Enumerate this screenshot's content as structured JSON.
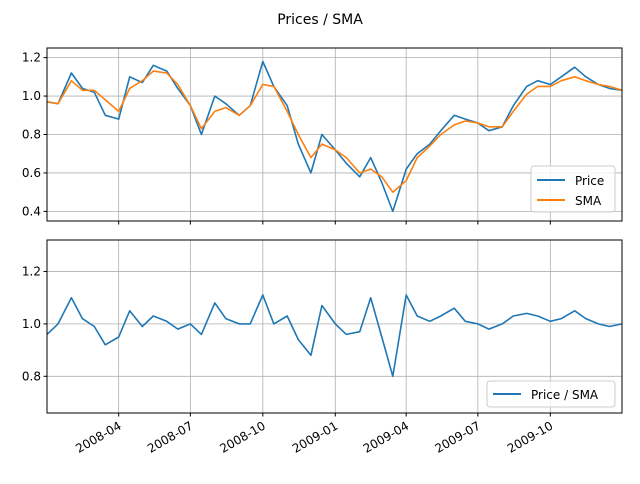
{
  "figure": {
    "title": "Prices / SMA"
  },
  "chart_data": [
    {
      "type": "line",
      "grid": true,
      "legend_location": "lower-right",
      "xlim": [
        "2008-01-01",
        "2009-12-31"
      ],
      "ylim": [
        0.35,
        1.25
      ],
      "yticks": [
        "0.4",
        "0.6",
        "0.8",
        "1.0",
        "1.2"
      ],
      "x": [
        "2008-01-01",
        "2008-01-15",
        "2008-02-01",
        "2008-02-15",
        "2008-03-01",
        "2008-03-15",
        "2008-04-01",
        "2008-04-15",
        "2008-05-01",
        "2008-05-15",
        "2008-06-01",
        "2008-06-15",
        "2008-07-01",
        "2008-07-15",
        "2008-08-01",
        "2008-08-15",
        "2008-09-01",
        "2008-09-15",
        "2008-10-01",
        "2008-10-15",
        "2008-11-01",
        "2008-11-15",
        "2008-12-01",
        "2008-12-15",
        "2009-01-01",
        "2009-01-15",
        "2009-02-01",
        "2009-02-15",
        "2009-03-01",
        "2009-03-15",
        "2009-04-01",
        "2009-04-15",
        "2009-05-01",
        "2009-05-15",
        "2009-06-01",
        "2009-06-15",
        "2009-07-01",
        "2009-07-15",
        "2009-08-01",
        "2009-08-15",
        "2009-09-01",
        "2009-09-15",
        "2009-10-01",
        "2009-10-15",
        "2009-11-01",
        "2009-11-15",
        "2009-12-01",
        "2009-12-15",
        "2009-12-31"
      ],
      "series": [
        {
          "name": "Price",
          "color": "#1f77b4",
          "values": [
            0.97,
            0.96,
            1.12,
            1.04,
            1.02,
            0.9,
            0.88,
            1.1,
            1.07,
            1.16,
            1.13,
            1.04,
            0.95,
            0.8,
            1.0,
            0.96,
            0.9,
            0.95,
            1.18,
            1.05,
            0.95,
            0.75,
            0.6,
            0.8,
            0.72,
            0.65,
            0.58,
            0.68,
            0.55,
            0.4,
            0.62,
            0.7,
            0.75,
            0.82,
            0.9,
            0.88,
            0.86,
            0.82,
            0.84,
            0.95,
            1.05,
            1.08,
            1.06,
            1.1,
            1.15,
            1.1,
            1.06,
            1.04,
            1.03
          ]
        },
        {
          "name": "SMA",
          "color": "#ff7f0e",
          "values": [
            0.97,
            0.96,
            1.08,
            1.03,
            1.03,
            0.98,
            0.92,
            1.04,
            1.08,
            1.13,
            1.12,
            1.06,
            0.95,
            0.83,
            0.92,
            0.94,
            0.9,
            0.95,
            1.06,
            1.05,
            0.92,
            0.8,
            0.68,
            0.75,
            0.72,
            0.68,
            0.6,
            0.62,
            0.58,
            0.5,
            0.56,
            0.68,
            0.74,
            0.8,
            0.85,
            0.87,
            0.86,
            0.84,
            0.84,
            0.92,
            1.01,
            1.05,
            1.05,
            1.08,
            1.1,
            1.08,
            1.06,
            1.05,
            1.03
          ]
        }
      ]
    },
    {
      "type": "line",
      "grid": true,
      "legend_location": "lower-right",
      "xlim": [
        "2008-01-01",
        "2009-12-31"
      ],
      "ylim": [
        0.66,
        1.32
      ],
      "yticks": [
        "0.8",
        "1.0",
        "1.2"
      ],
      "xticks": [
        "2008-04",
        "2008-07",
        "2008-10",
        "2009-01",
        "2009-04",
        "2009-07",
        "2009-10"
      ],
      "x": [
        "2008-01-01",
        "2008-01-15",
        "2008-02-01",
        "2008-02-15",
        "2008-03-01",
        "2008-03-15",
        "2008-04-01",
        "2008-04-15",
        "2008-05-01",
        "2008-05-15",
        "2008-06-01",
        "2008-06-15",
        "2008-07-01",
        "2008-07-15",
        "2008-08-01",
        "2008-08-15",
        "2008-09-01",
        "2008-09-15",
        "2008-10-01",
        "2008-10-15",
        "2008-11-01",
        "2008-11-15",
        "2008-12-01",
        "2008-12-15",
        "2009-01-01",
        "2009-01-15",
        "2009-02-01",
        "2009-02-15",
        "2009-03-01",
        "2009-03-15",
        "2009-04-01",
        "2009-04-15",
        "2009-05-01",
        "2009-05-15",
        "2009-06-01",
        "2009-06-15",
        "2009-07-01",
        "2009-07-15",
        "2009-08-01",
        "2009-08-15",
        "2009-09-01",
        "2009-09-15",
        "2009-10-01",
        "2009-10-15",
        "2009-11-01",
        "2009-11-15",
        "2009-12-01",
        "2009-12-15",
        "2009-12-31"
      ],
      "series": [
        {
          "name": "Price / SMA",
          "color": "#1f77b4",
          "values": [
            0.96,
            1.0,
            1.1,
            1.02,
            0.99,
            0.92,
            0.95,
            1.05,
            0.99,
            1.03,
            1.01,
            0.98,
            1.0,
            0.96,
            1.08,
            1.02,
            1.0,
            1.0,
            1.11,
            1.0,
            1.03,
            0.94,
            0.88,
            1.07,
            1.0,
            0.96,
            0.97,
            1.1,
            0.95,
            0.8,
            1.11,
            1.03,
            1.01,
            1.03,
            1.06,
            1.01,
            1.0,
            0.98,
            1.0,
            1.03,
            1.04,
            1.03,
            1.01,
            1.02,
            1.05,
            1.02,
            1.0,
            0.99,
            1.0
          ]
        }
      ]
    }
  ]
}
